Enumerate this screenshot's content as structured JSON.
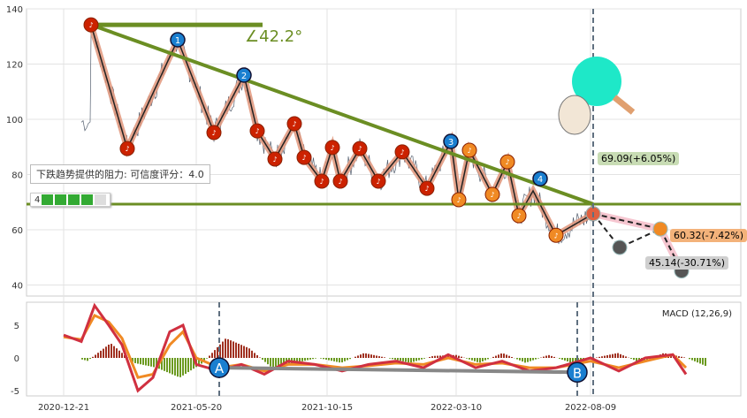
{
  "chart_data": [
    {
      "type": "line",
      "panel": "price",
      "ylim": [
        36,
        140
      ],
      "yticks": [
        40,
        60,
        80,
        100,
        120,
        140
      ],
      "xticks": [
        "2020-12-21",
        "2021-05-20",
        "2021-10-15",
        "2022-03-10",
        "2022-08-09"
      ],
      "zigzag": [
        [
          "2021-01-21",
          134.2
        ],
        [
          "2021-03-03",
          89.4
        ],
        [
          "2021-04-29",
          128.8
        ],
        [
          "2021-06-09",
          95.2
        ],
        [
          "2021-07-13",
          116
        ],
        [
          "2021-07-28",
          95.8
        ],
        [
          "2021-08-17",
          85.6
        ],
        [
          "2021-09-08",
          98.4
        ],
        [
          "2021-09-19",
          86.2
        ],
        [
          "2021-10-09",
          77.6
        ],
        [
          "2021-10-21",
          89.8
        ],
        [
          "2021-10-30",
          77.6
        ],
        [
          "2021-11-21",
          89.4
        ],
        [
          "2021-12-12",
          77.6
        ],
        [
          "2022-01-08",
          88.2
        ],
        [
          "2022-02-05",
          75
        ],
        [
          "2022-03-04",
          92
        ],
        [
          "2022-03-13",
          70.9
        ],
        [
          "2022-03-25",
          88.8
        ],
        [
          "2022-04-20",
          72.8
        ],
        [
          "2022-05-07",
          84.6
        ],
        [
          "2022-05-20",
          65.1
        ],
        [
          "2022-06-05",
          74.1
        ],
        [
          "2022-07-01",
          58
        ],
        [
          "2022-08-12",
          65.8
        ]
      ],
      "numbered_markers": [
        {
          "label": "1",
          "date": "2021-04-29",
          "value": 128.8
        },
        {
          "label": "2",
          "date": "2021-07-13",
          "value": 116
        },
        {
          "label": "3",
          "date": "2022-03-04",
          "value": 92
        },
        {
          "label": "4",
          "date": "2022-06-13",
          "value": 78.5
        }
      ],
      "resistance_line": [
        [
          "2021-01-21",
          134.2
        ],
        [
          "2022-08-12",
          69.3
        ]
      ],
      "support_level": 69.3,
      "angle_label": "∠42.2°",
      "vertical_marker": "2022-08-12",
      "forecast": [
        [
          "2022-08-12",
          65.8
        ],
        [
          "2022-09-11",
          53.6
        ],
        [
          "2022-10-27",
          60.3
        ],
        [
          "2022-11-20",
          45.1
        ]
      ],
      "forecast_labels": [
        {
          "text": "69.09(+6.05%)",
          "color": "#c8dcb4"
        },
        {
          "text": "60.32(-7.42%)",
          "color": "#f3b27a"
        },
        {
          "text": "45.14(-30.71%)",
          "color": "#cfcfcf"
        }
      ],
      "resistance_text": "下跌趋势提供的阻力: 可信度评分：4.0",
      "score_text": "4",
      "colors": {
        "trend": "#6b8e23",
        "zigzag": "#e0957a",
        "marker_red": "#cc2200",
        "marker_orange": "#f08a24",
        "marker_blue": "#1a7fd0"
      }
    },
    {
      "type": "line",
      "panel": "macd",
      "title": "MACD (12,26,9)",
      "ylim": [
        -6,
        8.5
      ],
      "yticks": [
        5,
        0,
        -5
      ],
      "dates": [
        "2020-12-21",
        "2021-01-10",
        "2021-01-25",
        "2021-02-10",
        "2021-02-25",
        "2021-03-15",
        "2021-04-01",
        "2021-04-20",
        "2021-05-05",
        "2021-05-20",
        "2021-06-15",
        "2021-07-10",
        "2021-08-05",
        "2021-09-01",
        "2021-10-01",
        "2021-11-01",
        "2021-12-01",
        "2022-01-01",
        "2022-02-01",
        "2022-03-01",
        "2022-04-01",
        "2022-05-01",
        "2022-06-01",
        "2022-07-01",
        "2022-08-09",
        "2022-09-10",
        "2022-10-10",
        "2022-11-10",
        "2022-11-25"
      ],
      "macd": [
        3.5,
        2.5,
        8,
        5,
        2,
        -5,
        -3,
        4,
        5,
        -1,
        -2,
        -1,
        -2.5,
        -0.5,
        -1,
        -2,
        -1,
        -0.5,
        -1.5,
        0.5,
        -1.5,
        -0.5,
        -2,
        -1.5,
        0,
        -2,
        0,
        0.5,
        -2.5
      ],
      "signal": [
        3.2,
        2.8,
        6.5,
        5.5,
        3,
        -3,
        -2.5,
        2,
        4,
        0,
        -1.5,
        -1,
        -2,
        -1,
        -1,
        -1.5,
        -1.2,
        -0.8,
        -1,
        0,
        -1,
        -0.8,
        -1.5,
        -1.5,
        -0.5,
        -1.5,
        -0.5,
        0.5,
        -1.5
      ],
      "markers": [
        {
          "label": "A",
          "date": "2021-06-15",
          "value": -1.5
        },
        {
          "label": "B",
          "date": "2022-07-25",
          "value": -2.2
        }
      ],
      "vertical_markers": [
        "2021-06-15",
        "2022-07-25"
      ]
    }
  ]
}
